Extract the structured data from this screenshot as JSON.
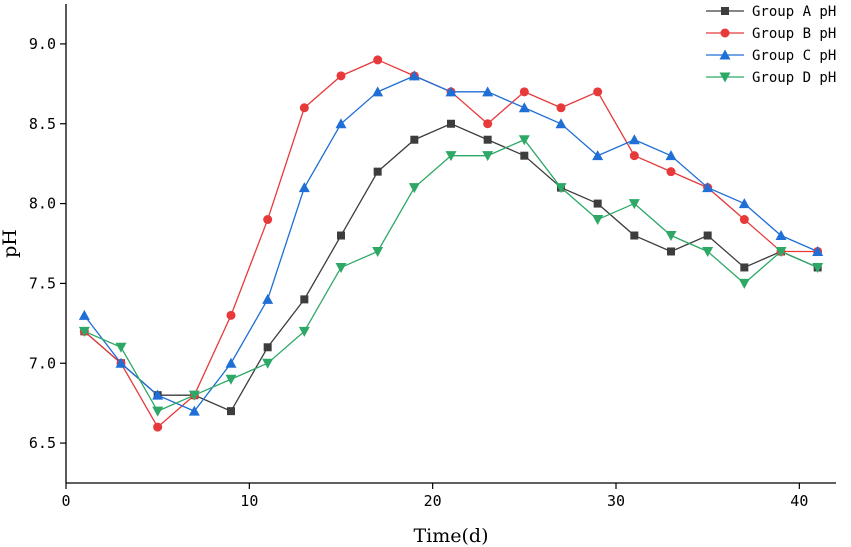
{
  "chart_data": {
    "type": "line",
    "title": "",
    "xlabel": "Time(d)",
    "ylabel": "pH",
    "xlim": [
      0,
      42
    ],
    "ylim": [
      6.25,
      9.25
    ],
    "x_ticks": [
      0,
      10,
      20,
      30,
      40
    ],
    "y_ticks": [
      6.5,
      7.0,
      7.5,
      8.0,
      8.5,
      9.0
    ],
    "y_tick_labels": [
      "6.5",
      "7.0",
      "7.5",
      "8.0",
      "8.5",
      "9.0"
    ],
    "grid": false,
    "legend_position": "top-right",
    "x": [
      1,
      3,
      5,
      7,
      9,
      11,
      13,
      15,
      17,
      19,
      21,
      23,
      25,
      27,
      29,
      31,
      33,
      35,
      37,
      39,
      41
    ],
    "series": [
      {
        "name": "Group A pH",
        "color": "#3d3d3d",
        "marker": "square",
        "values": [
          7.2,
          7.0,
          6.8,
          6.8,
          6.7,
          7.1,
          7.4,
          7.8,
          8.2,
          8.4,
          8.5,
          8.4,
          8.3,
          8.1,
          8.0,
          7.8,
          7.7,
          7.8,
          7.6,
          7.7,
          7.6
        ]
      },
      {
        "name": "Group B pH",
        "color": "#e8393a",
        "marker": "circle",
        "values": [
          7.2,
          7.0,
          6.6,
          6.8,
          7.3,
          7.9,
          8.6,
          8.8,
          8.9,
          8.8,
          8.7,
          8.5,
          8.7,
          8.6,
          8.7,
          8.3,
          8.2,
          8.1,
          7.9,
          7.7,
          7.7
        ]
      },
      {
        "name": "Group C pH",
        "color": "#1f6fd6",
        "marker": "triangle-up",
        "values": [
          7.3,
          7.0,
          6.8,
          6.7,
          7.0,
          7.4,
          8.1,
          8.5,
          8.7,
          8.8,
          8.7,
          8.7,
          8.6,
          8.5,
          8.3,
          8.4,
          8.3,
          8.1,
          8.0,
          7.8,
          7.7
        ]
      },
      {
        "name": "Group D pH",
        "color": "#2ea866",
        "marker": "triangle-down",
        "values": [
          7.2,
          7.1,
          6.7,
          6.8,
          6.9,
          7.0,
          7.2,
          7.6,
          7.7,
          8.1,
          8.3,
          8.3,
          8.4,
          8.1,
          7.9,
          8.0,
          7.8,
          7.7,
          7.5,
          7.7,
          7.6
        ]
      }
    ]
  }
}
